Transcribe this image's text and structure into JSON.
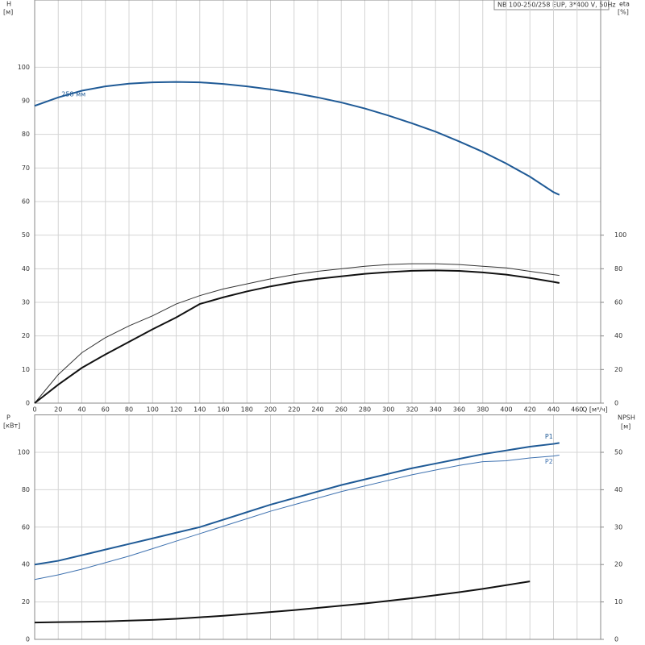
{
  "chart_data": [
    {
      "type": "line",
      "title": "NB 100-250/258 EUP, 3*400 V, 50Hz",
      "xlabel": "Q [м³/ч]",
      "ylabel": "H",
      "yunit": "[м]",
      "y2label": "eta",
      "y2unit": "[%]",
      "x": [
        0,
        20,
        40,
        60,
        80,
        100,
        120,
        140,
        160,
        180,
        200,
        220,
        240,
        260,
        280,
        300,
        320,
        340,
        360,
        380,
        400,
        420,
        440,
        445
      ],
      "xlim": [
        0,
        480
      ],
      "xticks": [
        0,
        20,
        40,
        60,
        80,
        100,
        120,
        140,
        160,
        180,
        200,
        220,
        240,
        260,
        280,
        300,
        320,
        340,
        360,
        380,
        400,
        420,
        440,
        460
      ],
      "ylim": [
        0,
        120
      ],
      "yticks": [
        0,
        10,
        20,
        30,
        40,
        50,
        60,
        70,
        80,
        90,
        100
      ],
      "y2lim": [
        0,
        240
      ],
      "y2ticks": [
        0,
        20,
        40,
        60,
        80,
        100
      ],
      "grid": true,
      "series": [
        {
          "name": "258 мм",
          "color": "#1f5a96",
          "line_width": 2,
          "values": [
            88.5,
            91,
            93,
            94.3,
            95.1,
            95.5,
            95.6,
            95.5,
            95,
            94.3,
            93.4,
            92.3,
            91,
            89.5,
            87.7,
            85.6,
            83.3,
            80.8,
            77.9,
            74.8,
            71.3,
            67.4,
            62.8,
            62
          ]
        },
        {
          "color": "#333333",
          "line_width": 1,
          "axis": "y2",
          "values": [
            0,
            17,
            30,
            39,
            46,
            52,
            59,
            64,
            68,
            71,
            74,
            76.5,
            78.5,
            80,
            81.5,
            82.5,
            83,
            83,
            82.5,
            81.5,
            80.5,
            78.5,
            76.5,
            76
          ]
        },
        {
          "color": "#111111",
          "line_width": 2,
          "axis": "y2",
          "values": [
            0,
            11,
            21,
            29,
            36.5,
            44,
            51,
            59,
            63,
            66.5,
            69.5,
            72,
            74,
            75.5,
            77,
            78,
            78.8,
            79,
            78.7,
            77.8,
            76.5,
            74.5,
            72.2,
            71.5
          ]
        }
      ]
    },
    {
      "type": "line",
      "ylabel": "P",
      "yunit": "[кВт]",
      "y2label": "NPSH",
      "y2unit": "[м]",
      "x": [
        0,
        20,
        40,
        60,
        80,
        100,
        120,
        140,
        160,
        180,
        200,
        220,
        240,
        260,
        280,
        300,
        320,
        340,
        360,
        380,
        400,
        420,
        440,
        445
      ],
      "xlim": [
        0,
        480
      ],
      "ylim": [
        0,
        120
      ],
      "yticks": [
        0,
        20,
        40,
        60,
        80,
        100
      ],
      "y2lim": [
        0,
        60
      ],
      "y2ticks": [
        0,
        10,
        20,
        30,
        40,
        50
      ],
      "grid": true,
      "series": [
        {
          "name": "P1",
          "color": "#1f5a96",
          "line_width": 2,
          "values": [
            40,
            42,
            45,
            48,
            51,
            54,
            57,
            60,
            64,
            68,
            72,
            75.5,
            79,
            82.5,
            85.5,
            88.5,
            91.5,
            94,
            96.5,
            99,
            101,
            103,
            104.5,
            105
          ]
        },
        {
          "name": "P2",
          "color": "#3f72b0",
          "line_width": 1,
          "values": [
            32,
            34.5,
            37.5,
            41,
            44.5,
            48.5,
            52.5,
            56.5,
            60.5,
            64.5,
            68.5,
            72,
            75.5,
            79,
            82,
            85,
            88,
            90.5,
            93,
            95,
            95.5,
            97,
            98,
            98.5
          ]
        },
        {
          "color": "#111111",
          "line_width": 2,
          "axis": "y2",
          "values": [
            4.5,
            4.6,
            4.7,
            4.8,
            5,
            5.2,
            5.5,
            5.9,
            6.3,
            6.8,
            7.3,
            7.8,
            8.4,
            9,
            9.6,
            10.3,
            11,
            11.8,
            12.6,
            13.5,
            14.5,
            15.5,
            null,
            null
          ]
        }
      ]
    }
  ]
}
